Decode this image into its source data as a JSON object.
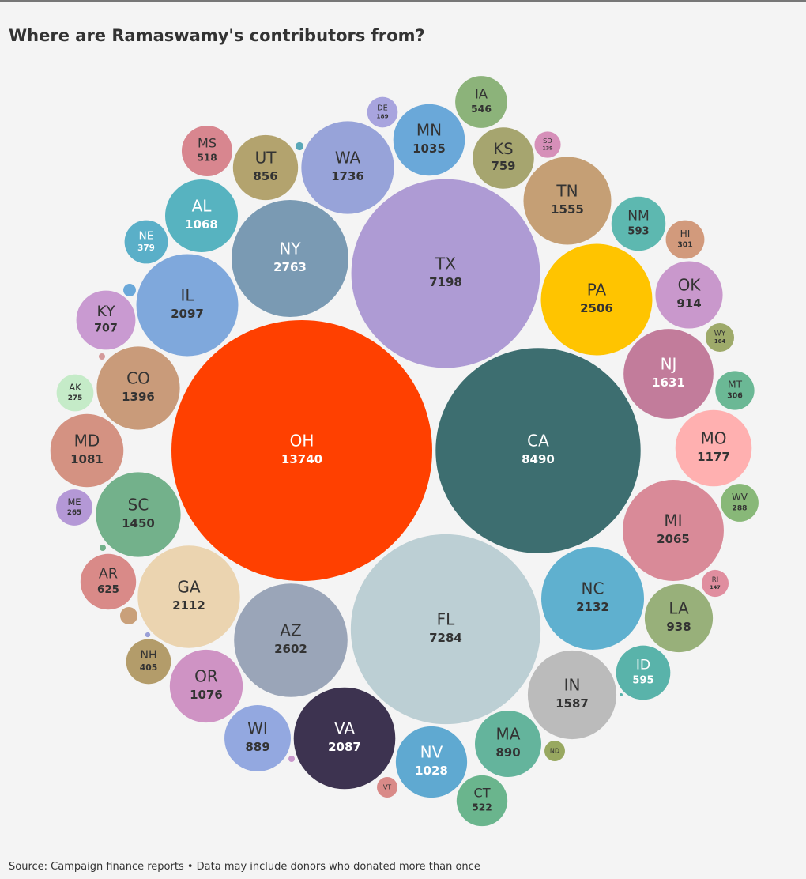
{
  "chart_data": {
    "type": "bubble",
    "title": "Where are Ramaswamy's contributors from?",
    "source": "Source: Campaign finance reports • Data may include donors who donated more than once",
    "categories": [
      "OH",
      "CA",
      "FL",
      "TX",
      "NY",
      "AZ",
      "PA",
      "NC",
      "GA",
      "IL",
      "VA",
      "MI",
      "WA",
      "NJ",
      "IN",
      "TN",
      "SC",
      "CO",
      "MO",
      "MD",
      "OR",
      "AL",
      "MN",
      "NV",
      "LA",
      "OK",
      "MA",
      "WI",
      "UT",
      "KS",
      "KY",
      "AR",
      "ID",
      "NM",
      "IA",
      "CT",
      "MS",
      "NH",
      "NE",
      "MT",
      "HI",
      "WV",
      "AK",
      "ME",
      "DE",
      "WY",
      "RI",
      "SD",
      "ND",
      "VT",
      null,
      null,
      null,
      null,
      null,
      null,
      null,
      null
    ],
    "values": [
      13740,
      8490,
      7284,
      7198,
      2763,
      2602,
      2506,
      2132,
      2112,
      2097,
      2087,
      2065,
      1736,
      1631,
      1587,
      1555,
      1450,
      1396,
      1177,
      1081,
      1076,
      1068,
      1035,
      1028,
      938,
      914,
      890,
      889,
      856,
      759,
      707,
      625,
      595,
      593,
      546,
      522,
      518,
      405,
      379,
      306,
      301,
      288,
      275,
      265,
      189,
      164,
      147,
      139,
      85,
      85,
      13,
      32,
      8,
      8,
      61,
      5,
      8,
      2
    ],
    "colors": [
      "#ff4000",
      "#3d6e70",
      "#bccfd4",
      "#ae9bd4",
      "#7a9ab3",
      "#9aa5b8",
      "#ffc400",
      "#5fb0cf",
      "#ebd4b0",
      "#7fa8dc",
      "#3d3350",
      "#d98a98",
      "#97a3d9",
      "#c27c9b",
      "#bbbbbb",
      "#c59f75",
      "#73b18b",
      "#c99b7a",
      "#ffb0b0",
      "#d49282",
      "#cf93c4",
      "#57b3c0",
      "#6aa8d9",
      "#5fa9d1",
      "#98b07a",
      "#c998cc",
      "#64b49c",
      "#93a8e0",
      "#b3a36e",
      "#a6a56f",
      "#c99ad1",
      "#d98a88",
      "#59b3aa",
      "#5db8b0",
      "#8cb37a",
      "#6ab58d",
      "#d8868f",
      "#b39c6a",
      "#5aafc8",
      "#6bb895",
      "#d29a7c",
      "#88b878",
      "#c5ebc8",
      "#b498d6",
      "#a8a4de",
      "#9eaa6a",
      "#e08e9f",
      "#d68fb9",
      "#98a860",
      "#d98a88",
      "#5aa8b8",
      "#6aa8d9",
      "#d49a9a",
      "#73b18b",
      "#c9a07a",
      "#9aa0d8",
      "#c998cc",
      "#59b3aa"
    ]
  }
}
